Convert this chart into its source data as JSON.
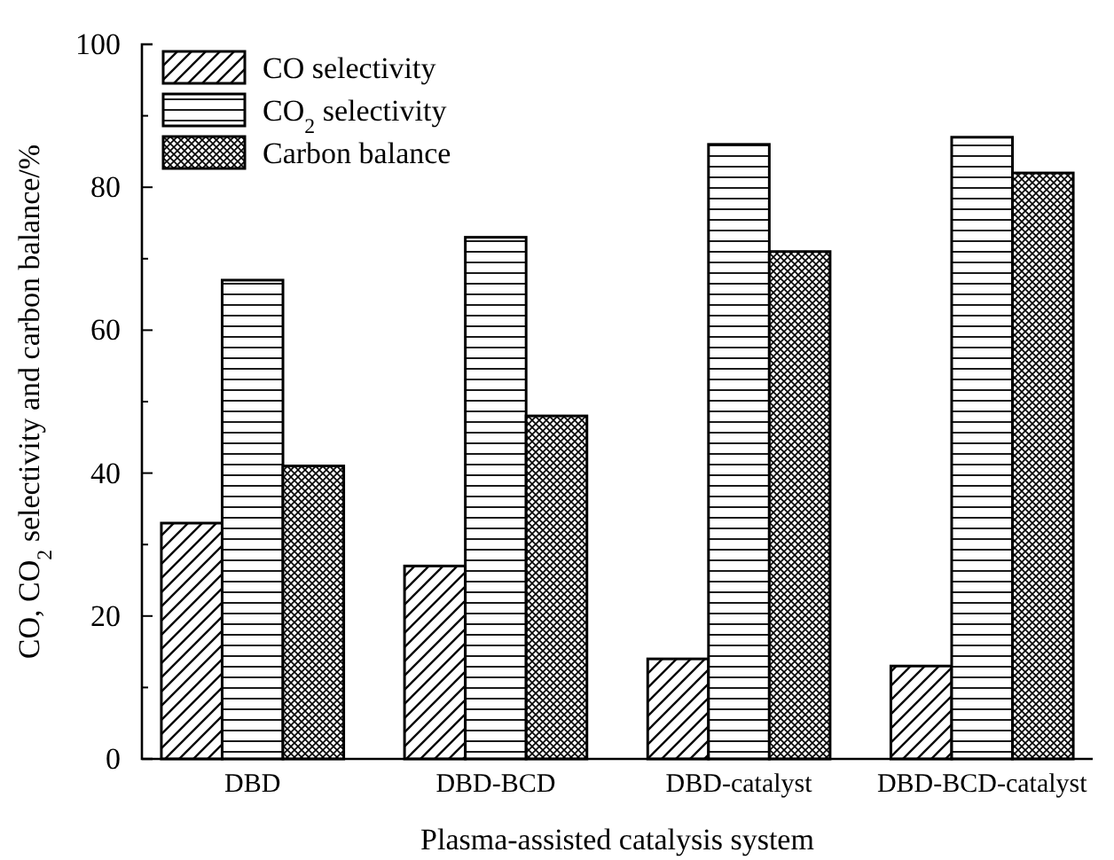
{
  "chart_data": {
    "type": "bar",
    "xlabel": "Plasma-assisted catalysis system",
    "ylabel": "CO, CO$_{2}$ selectivity and carbon balance/%",
    "categories": [
      "DBD",
      "DBD-BCD",
      "DBD-catalyst",
      "DBD-BCD-catalyst"
    ],
    "series": [
      {
        "name": "CO selectivity",
        "color": "#000000",
        "values": [
          33,
          27,
          14,
          13
        ]
      },
      {
        "name": "CO$_{2}$ selectivity",
        "color": "#000000",
        "values": [
          67,
          73,
          86,
          87
        ]
      },
      {
        "name": "Carbon balance",
        "color": "#000000",
        "values": [
          41,
          48,
          71,
          82
        ]
      }
    ],
    "ylim": [
      0,
      100
    ],
    "yticks": [
      0,
      {
        "value": 10,
        "label": null
      },
      20,
      {
        "value": 30,
        "label": null
      },
      40,
      {
        "value": 50,
        "label": null
      },
      60,
      {
        "value": 70,
        "label": null
      },
      80,
      {
        "value": 90,
        "label": null
      },
      100
    ],
    "legend": "top left"
  }
}
